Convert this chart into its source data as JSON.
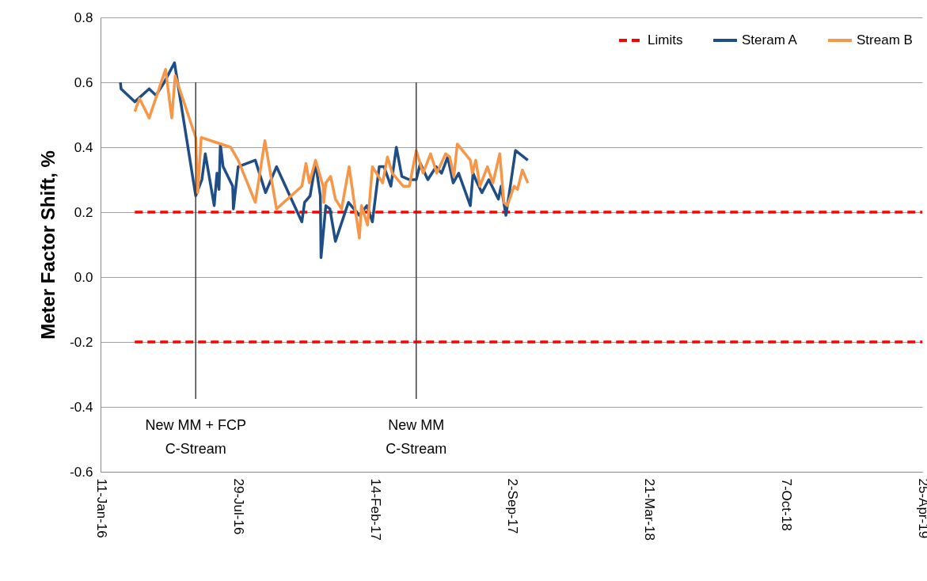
{
  "chart_data": {
    "type": "line",
    "ylabel": "Meter Factor Shift, %",
    "xlim": [
      "2016-01-11",
      "2019-04-25"
    ],
    "xticks": [
      {
        "value": "2016-01-11",
        "label": "11-Jan-16"
      },
      {
        "value": "2016-07-29",
        "label": "29-Jul-16"
      },
      {
        "value": "2017-02-14",
        "label": "14-Feb-17"
      },
      {
        "value": "2017-09-02",
        "label": "2-Sep-17"
      },
      {
        "value": "2018-03-21",
        "label": "21-Mar-18"
      },
      {
        "value": "2018-10-07",
        "label": "7-Oct-18"
      },
      {
        "value": "2019-04-25",
        "label": "25-Apr-19"
      }
    ],
    "ylim": [
      -0.6,
      0.8
    ],
    "yticks": [
      -0.6,
      -0.4,
      -0.2,
      {
        "value": 0,
        "label": "0.0"
      },
      0.2,
      0.4,
      0.6,
      0.8
    ],
    "grid": "y",
    "legend": "top right",
    "series": [
      {
        "name": "Limits",
        "color": "#ff0000",
        "line_style": "dashed",
        "x": [
          "2016-03-01",
          "2019-04-25"
        ],
        "values": [
          0.2,
          0.2
        ]
      },
      {
        "color": "#ff0000",
        "line_style": "dashed",
        "x": [
          "2016-03-01",
          "2019-04-25"
        ],
        "values": [
          -0.2,
          -0.2
        ]
      },
      {
        "name": "Steram A",
        "color": "#1f4e87",
        "x": [
          "2016-02-09",
          "2016-02-10",
          "2016-03-01",
          "2016-03-22",
          "2016-04-01",
          "2016-04-13",
          "2016-04-28",
          "2016-05-29",
          "2016-06-07",
          "2016-06-12",
          "2016-06-25",
          "2016-06-29",
          "2016-07-02",
          "2016-07-04",
          "2016-07-08",
          "2016-07-22",
          "2016-07-23",
          "2016-07-30",
          "2016-08-24",
          "2016-09-08",
          "2016-09-24",
          "2016-10-31",
          "2016-11-04",
          "2016-11-12",
          "2016-11-20",
          "2016-11-27",
          "2016-11-28",
          "2016-12-05",
          "2016-12-11",
          "2016-12-19",
          "2017-01-07",
          "2017-01-23",
          "2017-02-03",
          "2017-02-11",
          "2017-02-21",
          "2017-02-28",
          "2017-03-10",
          "2017-03-18",
          "2017-03-26",
          "2017-04-06",
          "2017-04-16",
          "2017-04-22",
          "2017-05-03",
          "2017-05-15",
          "2017-05-23",
          "2017-06-01",
          "2017-06-09",
          "2017-06-17",
          "2017-07-04",
          "2017-07-08",
          "2017-07-14",
          "2017-07-21",
          "2017-07-31",
          "2017-08-14",
          "2017-08-18",
          "2017-08-25",
          "2017-08-30",
          "2017-09-08",
          "2017-09-26"
        ],
        "values": [
          0.6,
          0.58,
          0.54,
          0.58,
          0.56,
          0.6,
          0.66,
          0.25,
          0.3,
          0.38,
          0.22,
          0.32,
          0.27,
          0.41,
          0.34,
          0.28,
          0.21,
          0.34,
          0.36,
          0.26,
          0.34,
          0.17,
          0.23,
          0.25,
          0.35,
          0.25,
          0.06,
          0.22,
          0.21,
          0.11,
          0.23,
          0.19,
          0.22,
          0.17,
          0.34,
          0.34,
          0.28,
          0.4,
          0.31,
          0.3,
          0.3,
          0.35,
          0.3,
          0.34,
          0.32,
          0.37,
          0.29,
          0.32,
          0.22,
          0.32,
          0.29,
          0.26,
          0.3,
          0.24,
          0.28,
          0.19,
          0.26,
          0.39,
          0.36
        ]
      },
      {
        "name": "Stream B",
        "color": "#f79646",
        "x": [
          "2016-03-01",
          "2016-03-08",
          "2016-03-22",
          "2016-04-15",
          "2016-04-24",
          "2016-04-29",
          "2016-05-29",
          "2016-06-01",
          "2016-06-06",
          "2016-07-19",
          "2016-07-30",
          "2016-08-24",
          "2016-09-07",
          "2016-09-24",
          "2016-10-31",
          "2016-11-06",
          "2016-11-11",
          "2016-11-20",
          "2016-12-01",
          "2016-12-02",
          "2016-12-05",
          "2016-12-12",
          "2016-12-19",
          "2016-12-28",
          "2017-01-08",
          "2017-01-23",
          "2017-01-26",
          "2017-02-04",
          "2017-02-11",
          "2017-02-26",
          "2017-03-05",
          "2017-03-12",
          "2017-03-28",
          "2017-04-06",
          "2017-04-16",
          "2017-04-26",
          "2017-05-07",
          "2017-05-16",
          "2017-05-29",
          "2017-06-04",
          "2017-06-10",
          "2017-06-15",
          "2017-07-04",
          "2017-07-07",
          "2017-07-12",
          "2017-07-18",
          "2017-07-29",
          "2017-08-06",
          "2017-08-16",
          "2017-08-22",
          "2017-08-27",
          "2017-09-06",
          "2017-09-11",
          "2017-09-18",
          "2017-09-26"
        ],
        "values": [
          0.51,
          0.55,
          0.49,
          0.64,
          0.49,
          0.62,
          0.43,
          0.26,
          0.43,
          0.4,
          0.36,
          0.23,
          0.42,
          0.21,
          0.28,
          0.35,
          0.29,
          0.36,
          0.28,
          0.23,
          0.29,
          0.31,
          0.24,
          0.21,
          0.34,
          0.12,
          0.22,
          0.16,
          0.34,
          0.29,
          0.37,
          0.32,
          0.28,
          0.28,
          0.39,
          0.32,
          0.38,
          0.32,
          0.38,
          0.37,
          0.31,
          0.41,
          0.36,
          0.32,
          0.36,
          0.28,
          0.34,
          0.29,
          0.38,
          0.23,
          0.22,
          0.28,
          0.27,
          0.33,
          0.29
        ]
      }
    ],
    "ref_lines": [
      {
        "axis": "x",
        "value": "2016-05-29",
        "label": "New MM + FCP\nC-Stream",
        "color": "#404040"
      },
      {
        "axis": "x",
        "value": "2017-04-16",
        "label": "New MM\nC-Stream",
        "color": "#404040"
      }
    ]
  }
}
